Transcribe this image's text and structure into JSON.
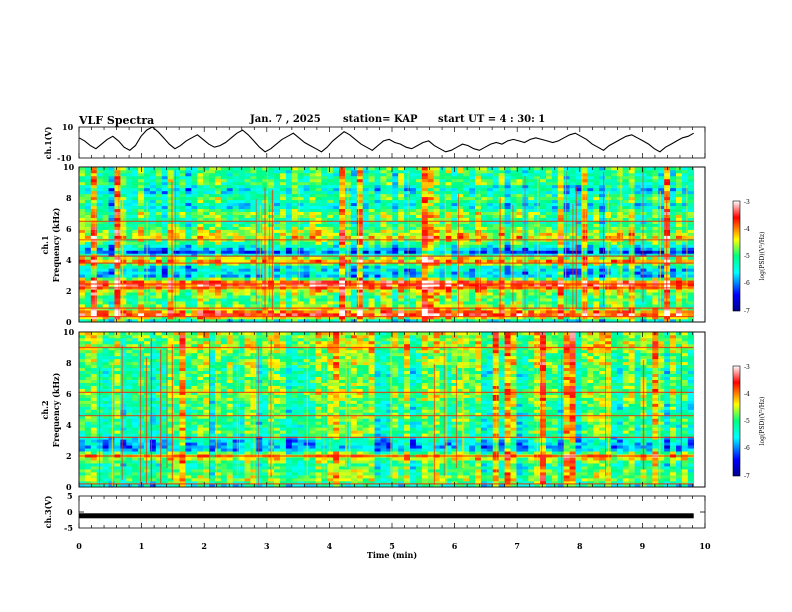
{
  "header": {
    "title": "VLF Spectra",
    "date": "Jan. 7 , 2025",
    "station": "station= KAP",
    "start": "start UT =  4 : 30: 1"
  },
  "colors": {
    "spectrum_low": "#00008f",
    "spectrum_high": "#ff0000",
    "trace": "#000000"
  },
  "chart_data": [
    {
      "type": "line",
      "name": "ch1-waveform",
      "ylabel": "ch.1(V)",
      "ylim": [
        -10,
        10
      ],
      "yticks": [
        "10",
        "-10"
      ],
      "xlim": [
        0,
        10
      ],
      "x_end": 9.82,
      "series": [
        {
          "name": "ch.1",
          "values": [
            3,
            1,
            -2,
            -4,
            -1,
            2,
            4,
            1,
            -3,
            -5,
            -2,
            4,
            8,
            10,
            7,
            3,
            -1,
            -4,
            -2,
            1,
            3,
            5,
            2,
            -1,
            -3,
            -2,
            0,
            3,
            6,
            8,
            5,
            1,
            -3,
            -6,
            -4,
            -1,
            2,
            4,
            6,
            3,
            0,
            -2,
            -4,
            -6,
            -3,
            1,
            4,
            7,
            5,
            2,
            -1,
            -3,
            -5,
            -2,
            1,
            2,
            0,
            -1,
            -3,
            -4,
            -2,
            0,
            1,
            -2,
            -4,
            -6,
            -5,
            -3,
            -1,
            -2,
            -4,
            -5,
            -3,
            -1,
            0,
            -1,
            1,
            2,
            1,
            0,
            2,
            3,
            2,
            1,
            0,
            1,
            3,
            5,
            6,
            4,
            2,
            -1,
            -3,
            -5,
            -2,
            0,
            2,
            4,
            5,
            3,
            1,
            -1,
            -4,
            -6,
            -3,
            -1,
            1,
            3,
            4,
            6
          ]
        }
      ]
    },
    {
      "type": "heatmap",
      "name": "ch1-spectrogram",
      "ylabel": "ch.1",
      "ylabel2": "Frequency (kHz)",
      "xlim": [
        0,
        10
      ],
      "ylim": [
        0,
        10
      ],
      "yticks": [
        "0",
        "2",
        "4",
        "6",
        "8",
        "10"
      ],
      "x_end": 9.82,
      "colorbar": {
        "label": "log(PSD)(V²/Hz)",
        "range": [
          -7,
          -3
        ],
        "ticks": [
          "-3",
          "-4",
          "-5",
          "-6",
          "-7"
        ]
      },
      "bands": [
        {
          "f": 0.0,
          "v": 0.3
        },
        {
          "f": 0.5,
          "v": 0.85
        },
        {
          "f": 1.0,
          "v": 0.55
        },
        {
          "f": 1.5,
          "v": 0.5
        },
        {
          "f": 2.0,
          "v": 0.6
        },
        {
          "f": 2.5,
          "v": 0.9
        },
        {
          "f": 3.0,
          "v": 0.3
        },
        {
          "f": 3.5,
          "v": 0.35
        },
        {
          "f": 4.0,
          "v": 0.75
        },
        {
          "f": 4.5,
          "v": 0.2
        },
        {
          "f": 5.0,
          "v": 0.45
        },
        {
          "f": 5.5,
          "v": 0.65
        },
        {
          "f": 6.0,
          "v": 0.55
        },
        {
          "f": 6.5,
          "v": 0.45
        },
        {
          "f": 7.0,
          "v": 0.55
        },
        {
          "f": 7.5,
          "v": 0.35
        },
        {
          "f": 8.0,
          "v": 0.5
        },
        {
          "f": 8.5,
          "v": 0.35
        },
        {
          "f": 9.0,
          "v": 0.5
        },
        {
          "f": 9.5,
          "v": 0.45
        },
        {
          "f": 10.0,
          "v": 0.5
        }
      ],
      "lines_khz": [
        0.35,
        0.9,
        2.2,
        2.45,
        3.8,
        4.25,
        5.3,
        6.5
      ]
    },
    {
      "type": "heatmap",
      "name": "ch2-spectrogram",
      "ylabel": "ch.2",
      "ylabel2": "Frequency (kHz)",
      "xlim": [
        0,
        10
      ],
      "ylim": [
        0,
        10
      ],
      "yticks": [
        "0",
        "2",
        "4",
        "6",
        "8",
        "10"
      ],
      "x_end": 9.82,
      "colorbar": {
        "label": "log(PSD)(V²/Hz)",
        "range": [
          -7,
          -3
        ],
        "ticks": [
          "-3",
          "-4",
          "-5",
          "-6",
          "-7"
        ]
      },
      "bands": [
        {
          "f": 0.0,
          "v": 0.35
        },
        {
          "f": 0.5,
          "v": 0.55
        },
        {
          "f": 1.0,
          "v": 0.5
        },
        {
          "f": 1.5,
          "v": 0.45
        },
        {
          "f": 2.0,
          "v": 0.7
        },
        {
          "f": 2.5,
          "v": 0.25
        },
        {
          "f": 3.0,
          "v": 0.35
        },
        {
          "f": 3.5,
          "v": 0.5
        },
        {
          "f": 4.0,
          "v": 0.45
        },
        {
          "f": 4.5,
          "v": 0.5
        },
        {
          "f": 5.0,
          "v": 0.45
        },
        {
          "f": 5.5,
          "v": 0.5
        },
        {
          "f": 6.0,
          "v": 0.55
        },
        {
          "f": 6.5,
          "v": 0.5
        },
        {
          "f": 7.0,
          "v": 0.5
        },
        {
          "f": 7.5,
          "v": 0.45
        },
        {
          "f": 8.0,
          "v": 0.55
        },
        {
          "f": 8.5,
          "v": 0.5
        },
        {
          "f": 9.0,
          "v": 0.6
        },
        {
          "f": 9.5,
          "v": 0.55
        },
        {
          "f": 10.0,
          "v": 0.6
        }
      ],
      "lines_khz": [
        0.2,
        2.0,
        3.2,
        4.6,
        6.1,
        9.0
      ]
    },
    {
      "type": "line",
      "name": "ch3-waveform",
      "ylabel": "ch.3(V)",
      "ylim": [
        -5,
        5
      ],
      "yticks": [
        "5",
        "0",
        "-5"
      ],
      "xlim": [
        0,
        10
      ],
      "x_end": 9.82,
      "series": [
        {
          "name": "ch.3",
          "values": [
            -1.2,
            -1.2
          ]
        }
      ],
      "xlabel": "Time (min)",
      "xticks": [
        "0",
        "1",
        "2",
        "3",
        "4",
        "5",
        "6",
        "7",
        "8",
        "9",
        "10"
      ]
    }
  ]
}
